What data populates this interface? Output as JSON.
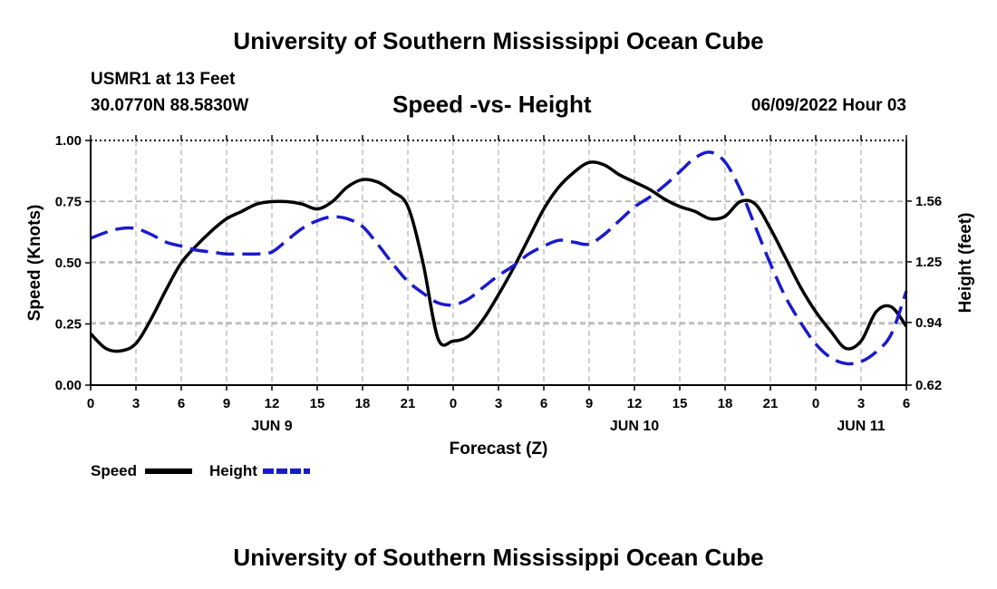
{
  "header": {
    "title": "University of Southern Mississippi Ocean Cube",
    "station": "USMR1 at 13 Feet",
    "coords": "30.0770N  88.5830W",
    "chart_title": "Speed -vs- Height",
    "datetime": "06/09/2022 Hour 03"
  },
  "footer": {
    "title": "University of Southern Mississippi Ocean Cube"
  },
  "legend": {
    "speed_label": "Speed",
    "height_label": "Height"
  },
  "colors": {
    "speed": "#000000",
    "height": "#1a1acc",
    "grid": "#b0b0b0"
  },
  "chart_data": {
    "type": "line",
    "title": "Speed -vs- Height",
    "xlabel": "Forecast (Z)",
    "ylabel_left": "Speed (Knots)",
    "ylabel_right": "Height (feet)",
    "x_range_hours": [
      0,
      54
    ],
    "x_tick_labels": [
      "0",
      "3",
      "6",
      "9",
      "12",
      "15",
      "18",
      "21",
      "0",
      "3",
      "6",
      "9",
      "12",
      "15",
      "18",
      "21",
      "0",
      "3",
      "6"
    ],
    "day_labels": [
      {
        "label": "JUN 9",
        "hour": 12
      },
      {
        "label": "JUN 10",
        "hour": 36
      },
      {
        "label": "JUN 11",
        "hour": 51
      }
    ],
    "ylim_left": [
      0,
      1
    ],
    "y_ticks_left": [
      "0.00",
      "0.25",
      "0.50",
      "0.75",
      "1.00"
    ],
    "y_ticks_right": [
      "0.62",
      "0.94",
      "1.25",
      "1.56"
    ],
    "ylim_right": [
      0.62,
      1.87
    ],
    "series": [
      {
        "name": "Speed",
        "axis": "left",
        "style": "solid",
        "x": [
          0,
          1,
          2,
          3,
          4,
          5,
          6,
          7,
          8,
          9,
          10,
          11,
          12,
          13,
          14,
          15,
          16,
          17,
          18,
          19,
          20,
          21,
          22,
          23,
          24,
          25,
          26,
          27,
          28,
          29,
          30,
          31,
          32,
          33,
          34,
          35,
          36,
          37,
          38,
          39,
          40,
          41,
          42,
          43,
          44,
          45,
          46,
          47,
          48,
          49,
          50,
          51,
          52,
          53,
          54
        ],
        "values": [
          0.21,
          0.15,
          0.14,
          0.17,
          0.27,
          0.39,
          0.5,
          0.57,
          0.63,
          0.68,
          0.71,
          0.74,
          0.75,
          0.75,
          0.74,
          0.72,
          0.75,
          0.81,
          0.84,
          0.83,
          0.79,
          0.73,
          0.5,
          0.19,
          0.18,
          0.2,
          0.27,
          0.37,
          0.48,
          0.6,
          0.72,
          0.81,
          0.87,
          0.91,
          0.9,
          0.86,
          0.83,
          0.8,
          0.76,
          0.73,
          0.71,
          0.68,
          0.69,
          0.75,
          0.74,
          0.64,
          0.52,
          0.4,
          0.3,
          0.22,
          0.15,
          0.18,
          0.3,
          0.32,
          0.24
        ]
      },
      {
        "name": "Height",
        "axis": "right",
        "style": "dashed",
        "x": [
          0,
          1,
          2,
          3,
          4,
          5,
          6,
          7,
          8,
          9,
          10,
          11,
          12,
          13,
          14,
          15,
          16,
          17,
          18,
          19,
          20,
          21,
          22,
          23,
          24,
          25,
          26,
          27,
          28,
          29,
          30,
          31,
          32,
          33,
          34,
          35,
          36,
          37,
          38,
          39,
          40,
          41,
          42,
          43,
          44,
          45,
          46,
          47,
          48,
          49,
          50,
          51,
          52,
          53,
          54
        ],
        "values": [
          1.37,
          1.4,
          1.42,
          1.42,
          1.39,
          1.35,
          1.33,
          1.31,
          1.3,
          1.29,
          1.29,
          1.29,
          1.3,
          1.36,
          1.42,
          1.46,
          1.48,
          1.47,
          1.43,
          1.34,
          1.24,
          1.15,
          1.09,
          1.04,
          1.03,
          1.06,
          1.12,
          1.18,
          1.23,
          1.29,
          1.33,
          1.36,
          1.35,
          1.34,
          1.39,
          1.46,
          1.53,
          1.58,
          1.64,
          1.71,
          1.78,
          1.81,
          1.76,
          1.62,
          1.43,
          1.24,
          1.07,
          0.94,
          0.83,
          0.76,
          0.73,
          0.74,
          0.79,
          0.88,
          1.1
        ]
      }
    ]
  }
}
